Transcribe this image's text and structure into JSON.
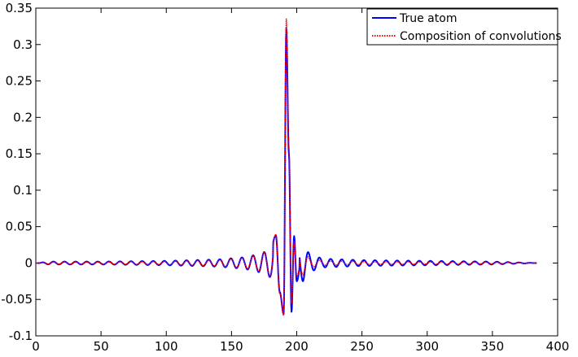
{
  "chart_data": {
    "type": "line",
    "title": "",
    "xlabel": "",
    "ylabel": "",
    "xlim": [
      0,
      400
    ],
    "ylim": [
      -0.1,
      0.35
    ],
    "xticks": [
      0,
      50,
      100,
      150,
      200,
      250,
      300,
      350,
      400
    ],
    "yticks": [
      -0.1,
      -0.05,
      0,
      0.05,
      0.1,
      0.15,
      0.2,
      0.25,
      0.3,
      0.35
    ],
    "xtick_labels": [
      "0",
      "50",
      "100",
      "150",
      "200",
      "250",
      "300",
      "350",
      "400"
    ],
    "ytick_labels": [
      "-0.1",
      "-0.05",
      "0",
      "0.05",
      "0.1",
      "0.15",
      "0.2",
      "0.25",
      "0.3",
      "0.35"
    ],
    "grid": false,
    "legend_position": "top-right",
    "series": [
      {
        "name": "True atom",
        "color": "#0000ff",
        "style": "solid",
        "x": [
          1,
          10,
          50,
          100,
          140,
          160,
          170,
          175,
          180,
          184,
          187,
          190,
          192,
          194,
          196,
          198,
          200,
          205,
          210,
          220,
          250,
          300,
          350,
          384
        ],
        "y": [
          0.0,
          0.002,
          0.002,
          0.003,
          0.005,
          0.008,
          0.012,
          0.015,
          0.02,
          0.038,
          -0.04,
          -0.07,
          0.322,
          0.15,
          -0.067,
          0.037,
          -0.025,
          0.025,
          0.012,
          0.006,
          0.004,
          0.003,
          0.002,
          0.0
        ]
      },
      {
        "name": "Composition of convolutions",
        "color": "#ff0000",
        "style": "dotted",
        "x": [
          1,
          10,
          50,
          100,
          140,
          160,
          170,
          175,
          180,
          184,
          187,
          190,
          192,
          194,
          196,
          198,
          200,
          205,
          210,
          220,
          250,
          300,
          350,
          384
        ],
        "y": [
          0.0,
          0.0015,
          0.0015,
          0.002,
          0.004,
          0.007,
          0.011,
          0.014,
          0.019,
          0.039,
          -0.042,
          -0.072,
          0.335,
          0.16,
          -0.055,
          0.03,
          -0.018,
          0.016,
          0.006,
          0.003,
          0.002,
          0.0015,
          0.001,
          0.0
        ]
      }
    ]
  }
}
